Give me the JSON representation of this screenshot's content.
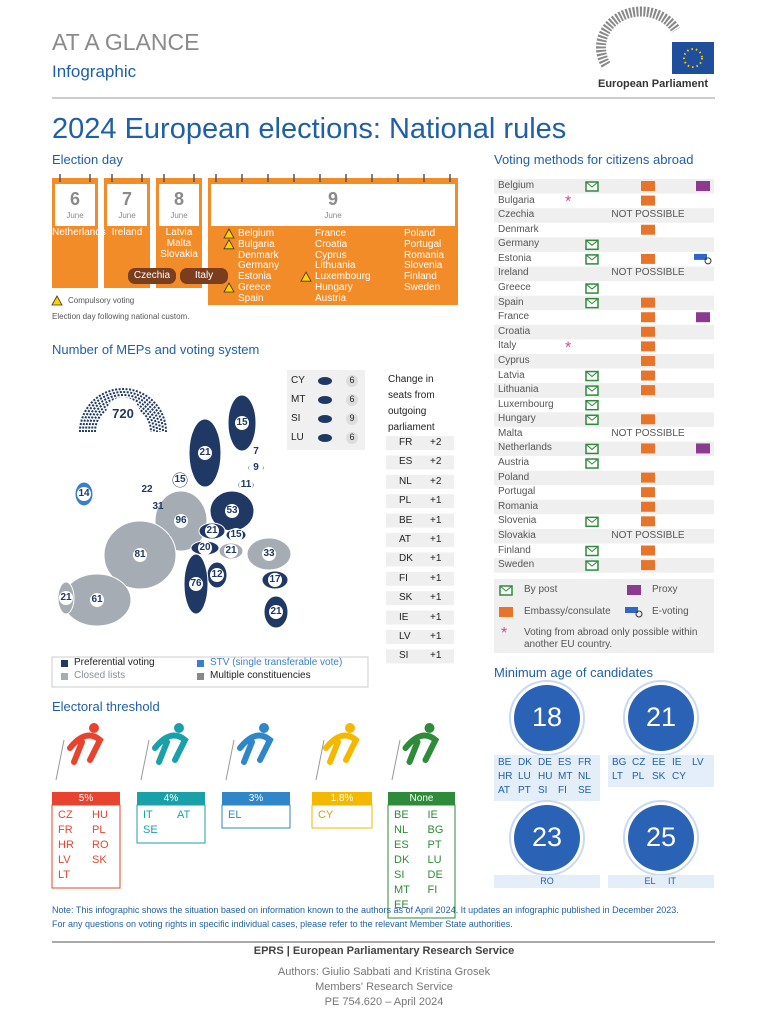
{
  "header": {
    "title": "AT A GLANCE",
    "subtitle": "Infographic",
    "logo_text": "European Parliament"
  },
  "main_title": "2024 European elections: National rules",
  "election_day": {
    "heading": "Election day",
    "days": [
      {
        "day": "6",
        "month": "June",
        "columns": [
          [
            "Netherlands"
          ]
        ]
      },
      {
        "day": "7",
        "month": "June",
        "columns": [
          [
            "Ireland"
          ]
        ]
      },
      {
        "day": "8",
        "month": "June",
        "columns": [
          [
            "Latvia",
            "Malta",
            "Slovakia"
          ]
        ]
      },
      {
        "day": "9",
        "month": "June",
        "columns": [
          [
            {
              "name": "Belgium",
              "compulsory": true
            },
            {
              "name": "Bulgaria",
              "compulsory": true
            },
            {
              "name": "Denmark"
            },
            {
              "name": "Germany"
            },
            {
              "name": "Estonia"
            },
            {
              "name": "Greece",
              "compulsory": true
            },
            {
              "name": "Spain"
            }
          ],
          [
            {
              "name": "France"
            },
            {
              "name": "Croatia"
            },
            {
              "name": "Cyprus"
            },
            {
              "name": "Lithuania"
            },
            {
              "name": "Luxembourg",
              "compulsory": true
            },
            {
              "name": "Hungary"
            },
            {
              "name": "Austria"
            }
          ],
          [
            {
              "name": "Poland"
            },
            {
              "name": "Portugal"
            },
            {
              "name": "Romania"
            },
            {
              "name": "Slovenia"
            },
            {
              "name": "Finland"
            },
            {
              "name": "Sweden"
            }
          ]
        ]
      }
    ],
    "spanning": [
      "Czechia",
      "Italy"
    ],
    "compulsory_label": "Compulsory voting",
    "custom_note": "Election day following national custom."
  },
  "meps": {
    "heading": "Number of MEPs and voting system",
    "total": "720",
    "small_states": [
      {
        "code": "CY",
        "value": "6"
      },
      {
        "code": "MT",
        "value": "6"
      },
      {
        "code": "SI",
        "value": "9"
      },
      {
        "code": "LU",
        "value": "6"
      }
    ],
    "map_labels": [
      {
        "value": "15",
        "color": "#1f3864"
      },
      {
        "value": "21",
        "color": "#1f3864"
      },
      {
        "value": "7",
        "color": "#1f3864"
      },
      {
        "value": "9",
        "color": "#1f3864"
      },
      {
        "value": "11",
        "color": "#1f3864"
      },
      {
        "value": "15",
        "color": "#1f3864"
      },
      {
        "value": "14",
        "color": "#3a7fcf"
      },
      {
        "value": "22",
        "color": "#1f3864"
      },
      {
        "value": "31",
        "color": "#1f3864"
      },
      {
        "value": "96",
        "color": "#a6acb3"
      },
      {
        "value": "53",
        "color": "#1f3864"
      },
      {
        "value": "21",
        "color": "#1f3864"
      },
      {
        "value": "15",
        "color": "#1f3864"
      },
      {
        "value": "20",
        "color": "#1f3864"
      },
      {
        "value": "21",
        "color": "#a6acb3"
      },
      {
        "value": "33",
        "color": "#a6acb3"
      },
      {
        "value": "17",
        "color": "#1f3864"
      },
      {
        "value": "12",
        "color": "#1f3864"
      },
      {
        "value": "76",
        "color": "#1f3864"
      },
      {
        "value": "81",
        "color": "#a6acb3"
      },
      {
        "value": "61",
        "color": "#a6acb3"
      },
      {
        "value": "21",
        "color": "#a6acb3"
      },
      {
        "value": "21",
        "color": "#1f3864"
      }
    ],
    "change_heading": "Change in seats from outgoing parliament",
    "changes": [
      [
        "FR",
        "+2"
      ],
      [
        "ES",
        "+2"
      ],
      [
        "NL",
        "+2"
      ],
      [
        "PL",
        "+1"
      ],
      [
        "BE",
        "+1"
      ],
      [
        "AT",
        "+1"
      ],
      [
        "DK",
        "+1"
      ],
      [
        "FI",
        "+1"
      ],
      [
        "SK",
        "+1"
      ],
      [
        "IE",
        "+1"
      ],
      [
        "LV",
        "+1"
      ],
      [
        "SI",
        "+1"
      ]
    ],
    "legend": [
      {
        "label": "Preferential voting",
        "color": "#1f3864"
      },
      {
        "label": "STV (single transferable vote)",
        "color": "#3a7fcf"
      },
      {
        "label": "Closed lists",
        "color": "#a6acb3"
      },
      {
        "label": "Multiple constituencies",
        "color": "#888"
      }
    ]
  },
  "threshold": {
    "heading": "Electoral threshold",
    "groups": [
      {
        "label": "5%",
        "color": "#e8432e",
        "countries": [
          "CZ",
          "HU",
          "FR",
          "PL",
          "HR",
          "RO",
          "LV",
          "SK",
          "LT"
        ]
      },
      {
        "label": "4%",
        "color": "#1aa0a8",
        "countries": [
          "IT",
          "AT",
          "SE"
        ]
      },
      {
        "label": "3%",
        "color": "#2f86c9",
        "countries": [
          "EL"
        ]
      },
      {
        "label": "1.8%",
        "color": "#f5b800",
        "countries": [
          "CY"
        ]
      },
      {
        "label": "None",
        "color": "#2e8b3a",
        "countries": [
          "BE",
          "IE",
          "NL",
          "BG",
          "ES",
          "PT",
          "DK",
          "LU",
          "SI",
          "DE",
          "MT",
          "FI",
          "EE"
        ]
      }
    ]
  },
  "abroad": {
    "heading": "Voting methods for citizens abroad",
    "rows": [
      {
        "country": "Belgium",
        "post": true,
        "embassy": true,
        "proxy": true
      },
      {
        "country": "Bulgaria",
        "eu_only": true,
        "embassy": true
      },
      {
        "country": "Czechia",
        "note": "NOT POSSIBLE"
      },
      {
        "country": "Denmark",
        "embassy": true
      },
      {
        "country": "Germany",
        "post": true
      },
      {
        "country": "Estonia",
        "post": true,
        "embassy": true,
        "evote": true
      },
      {
        "country": "Ireland",
        "note": "NOT POSSIBLE"
      },
      {
        "country": "Greece",
        "post": true
      },
      {
        "country": "Spain",
        "post": true,
        "embassy": true
      },
      {
        "country": "France",
        "embassy": true,
        "proxy": true
      },
      {
        "country": "Croatia",
        "embassy": true
      },
      {
        "country": "Italy",
        "eu_only": true,
        "embassy": true
      },
      {
        "country": "Cyprus",
        "embassy": true
      },
      {
        "country": "Latvia",
        "post": true,
        "embassy": true
      },
      {
        "country": "Lithuania",
        "post": true,
        "embassy": true
      },
      {
        "country": "Luxembourg",
        "post": true
      },
      {
        "country": "Hungary",
        "post": true,
        "embassy": true
      },
      {
        "country": "Malta",
        "note": "NOT POSSIBLE"
      },
      {
        "country": "Netherlands",
        "post": true,
        "embassy": true,
        "proxy": true
      },
      {
        "country": "Austria",
        "post": true
      },
      {
        "country": "Poland",
        "embassy": true
      },
      {
        "country": "Portugal",
        "embassy": true
      },
      {
        "country": "Romania",
        "embassy": true
      },
      {
        "country": "Slovenia",
        "post": true,
        "embassy": true
      },
      {
        "country": "Slovakia",
        "note": "NOT POSSIBLE"
      },
      {
        "country": "Finland",
        "post": true,
        "embassy": true
      },
      {
        "country": "Sweden",
        "post": true,
        "embassy": true
      }
    ],
    "legend": {
      "post": "By post",
      "proxy": "Proxy",
      "embassy": "Embassy/consulate",
      "evote": "E-voting",
      "eu_only": "Voting from abroad only possible within another EU country."
    }
  },
  "min_age": {
    "heading": "Minimum age of candidates",
    "groups": [
      {
        "age": "18",
        "countries": [
          "BE",
          "DK",
          "DE",
          "ES",
          "FR",
          "HR",
          "LU",
          "HU",
          "MT",
          "NL",
          "AT",
          "PT",
          "SI",
          "FI",
          "SE"
        ]
      },
      {
        "age": "21",
        "countries": [
          "BG",
          "CZ",
          "EE",
          "IE",
          "LV",
          "LT",
          "PL",
          "SK",
          "CY"
        ]
      },
      {
        "age": "23",
        "countries": [
          "RO"
        ]
      },
      {
        "age": "25",
        "countries": [
          "EL",
          "IT"
        ]
      }
    ]
  },
  "notes": [
    "Note: This infographic shows the situation based on information known to the authors as of April 2024. It updates an infographic published in December 2023.",
    "For any questions on voting rights in specific individual cases, please refer to the relevant Member State authorities."
  ],
  "footer": {
    "service": "EPRS | European Parliamentary Research Service",
    "authors": "Authors: Giulio Sabbati and Kristina Grosek",
    "unit": "Members' Research Service",
    "reference": "PE 754.620 – April 2024"
  }
}
